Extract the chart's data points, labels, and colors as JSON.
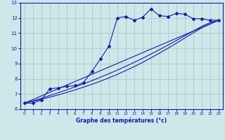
{
  "xlabel": "Graphe des températures (°c)",
  "background_color": "#cce8e8",
  "grid_color": "#aacccc",
  "line_color": "#1a1aaa",
  "xlim": [
    -0.5,
    23.5
  ],
  "ylim": [
    6,
    13
  ],
  "yticks": [
    6,
    7,
    8,
    9,
    10,
    11,
    12,
    13
  ],
  "xticks": [
    0,
    1,
    2,
    3,
    4,
    5,
    6,
    7,
    8,
    9,
    10,
    11,
    12,
    13,
    14,
    15,
    16,
    17,
    18,
    19,
    20,
    21,
    22,
    23
  ],
  "main_x": [
    0,
    1,
    2,
    3,
    4,
    5,
    6,
    7,
    8,
    9,
    10,
    11,
    12,
    13,
    14,
    15,
    16,
    17,
    18,
    19,
    20,
    21,
    22,
    23
  ],
  "main_y": [
    6.4,
    6.4,
    6.6,
    7.35,
    7.4,
    7.5,
    7.55,
    7.75,
    8.5,
    9.3,
    10.15,
    12.0,
    12.1,
    11.85,
    12.05,
    12.6,
    12.15,
    12.1,
    12.3,
    12.25,
    11.95,
    11.95,
    11.85,
    11.85
  ],
  "trend1_x": [
    0,
    23
  ],
  "trend1_y": [
    6.4,
    11.85
  ],
  "trend2_x": [
    0,
    1,
    2,
    3,
    4,
    5,
    6,
    7,
    8,
    9,
    10,
    11,
    12,
    13,
    14,
    15,
    16,
    17,
    18,
    19,
    20,
    21,
    22,
    23
  ],
  "trend2_y": [
    6.4,
    6.55,
    6.72,
    6.9,
    7.08,
    7.27,
    7.47,
    7.67,
    7.88,
    8.1,
    8.33,
    8.57,
    8.82,
    9.08,
    9.35,
    9.63,
    9.92,
    10.22,
    10.52,
    10.83,
    11.14,
    11.45,
    11.7,
    11.85
  ],
  "trend3_x": [
    0,
    1,
    2,
    3,
    4,
    5,
    6,
    7,
    8,
    9,
    10,
    11,
    12,
    13,
    14,
    15,
    16,
    17,
    18,
    19,
    20,
    21,
    22,
    23
  ],
  "trend3_y": [
    6.4,
    6.52,
    6.65,
    6.79,
    6.94,
    7.1,
    7.27,
    7.45,
    7.64,
    7.84,
    8.06,
    8.29,
    8.54,
    8.8,
    9.08,
    9.38,
    9.69,
    10.01,
    10.34,
    10.68,
    11.02,
    11.35,
    11.6,
    11.85
  ]
}
